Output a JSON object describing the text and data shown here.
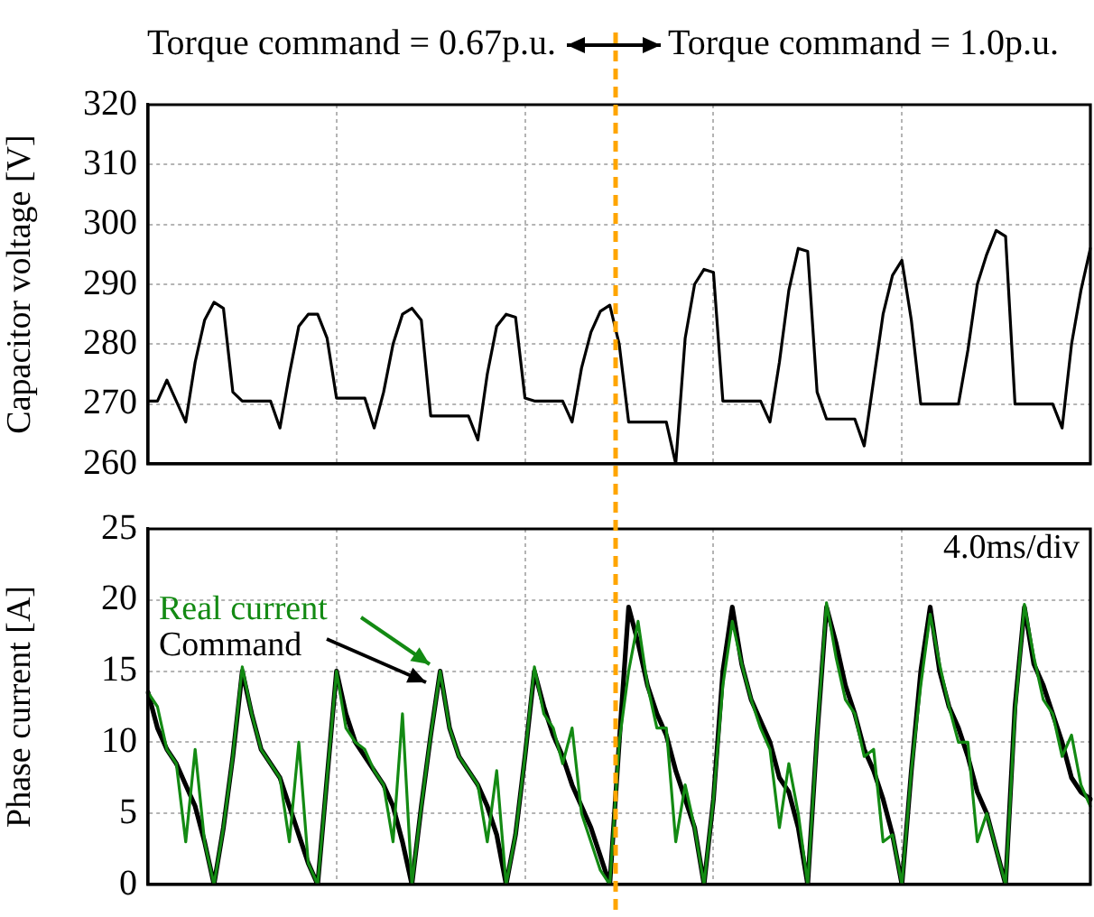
{
  "chart_data": [
    {
      "type": "line",
      "ylabel": "Capacitor voltage [V]",
      "annotations": [
        "Torque command = 0.67p.u.",
        "Torque command = 1.0p.u."
      ],
      "categories": [
        null,
        null,
        null,
        null,
        null,
        null,
        null,
        null,
        null,
        null,
        null,
        null,
        null,
        null,
        null,
        null,
        null,
        null,
        null,
        null,
        null,
        null,
        null,
        null,
        null,
        null,
        null,
        null,
        null,
        null,
        null,
        null,
        null,
        null,
        null,
        null,
        null,
        null,
        null,
        null,
        null,
        null,
        null,
        null,
        null,
        null,
        null,
        null,
        null,
        null,
        null,
        null,
        null,
        null,
        null,
        null,
        null,
        null,
        null,
        null,
        null,
        null,
        null,
        null,
        null,
        null,
        null,
        null,
        null,
        null,
        null,
        null,
        null,
        null,
        null,
        null,
        null,
        null,
        null,
        null,
        null,
        null,
        null,
        null,
        null,
        null,
        null,
        null,
        null,
        null,
        null,
        null,
        null,
        null,
        null,
        null,
        null,
        null,
        null,
        null,
        null
      ],
      "ylim": [
        260,
        320
      ],
      "yticks": [
        260,
        270,
        280,
        290,
        300,
        310,
        320
      ],
      "grid": true,
      "tick_labels": "y",
      "marker": "none",
      "line_style": "solid",
      "series": [
        {
          "color": "#000000",
          "values": [
            270.5,
            270.5,
            274,
            270.5,
            267,
            277,
            284,
            287,
            286,
            272,
            270.5,
            270.5,
            270.5,
            270.5,
            266,
            275,
            283,
            285,
            285,
            281,
            271,
            271,
            271,
            271,
            266,
            272,
            280,
            285,
            286,
            284,
            268,
            268,
            268,
            268,
            268,
            264,
            275,
            283,
            285,
            284.5,
            271,
            270.5,
            270.5,
            270.5,
            270.5,
            267,
            276,
            282,
            285.5,
            286.5,
            280,
            267,
            267,
            267,
            267,
            267,
            260,
            281,
            290,
            292.5,
            292,
            270.5,
            270.5,
            270.5,
            270.5,
            270.5,
            267,
            277,
            289,
            296,
            295.5,
            272,
            267.5,
            267.5,
            267.5,
            267.5,
            263,
            274,
            285,
            291.5,
            294,
            284,
            270,
            270,
            270,
            270,
            270,
            279,
            290,
            295,
            299,
            298,
            270,
            270,
            270,
            270,
            270,
            266,
            280,
            289,
            296
          ]
        }
      ]
    },
    {
      "type": "line",
      "ylabel": "Phase current [A]",
      "annotations": [
        "4.0ms/div"
      ],
      "categories": [
        null,
        null,
        null,
        null,
        null,
        null,
        null,
        null,
        null,
        null,
        null,
        null,
        null,
        null,
        null,
        null,
        null,
        null,
        null,
        null,
        null,
        null,
        null,
        null,
        null,
        null,
        null,
        null,
        null,
        null,
        null,
        null,
        null,
        null,
        null,
        null,
        null,
        null,
        null,
        null,
        null,
        null,
        null,
        null,
        null,
        null,
        null,
        null,
        null,
        null,
        null,
        null,
        null,
        null,
        null,
        null,
        null,
        null,
        null,
        null,
        null,
        null,
        null,
        null,
        null,
        null,
        null,
        null,
        null,
        null,
        null,
        null,
        null,
        null,
        null,
        null,
        null,
        null,
        null,
        null,
        null,
        null,
        null,
        null,
        null,
        null,
        null,
        null,
        null,
        null,
        null,
        null,
        null,
        null,
        null,
        null,
        null,
        null,
        null,
        null,
        null
      ],
      "ylim": [
        0,
        25
      ],
      "yticks": [
        0,
        5,
        10,
        15,
        20,
        25
      ],
      "grid": true,
      "tick_labels": "y",
      "marker": "none",
      "line_style": "solid",
      "series": [
        {
          "name": "Command",
          "color": "#000000",
          "values": [
            13.5,
            11,
            9.5,
            8.5,
            7,
            5.5,
            3,
            0,
            4,
            9,
            15,
            12,
            9.5,
            8.5,
            7.5,
            5.5,
            3.5,
            1.5,
            0,
            7.5,
            15,
            12,
            10,
            9,
            8,
            7,
            5.5,
            3,
            0,
            5.5,
            10.5,
            15,
            11,
            9,
            8,
            7,
            5.5,
            3.5,
            0,
            3.5,
            9,
            15,
            12.5,
            10.5,
            9,
            7,
            5.5,
            4,
            2,
            0,
            10,
            19.5,
            17,
            14,
            12,
            10.5,
            8,
            6,
            4,
            0,
            6,
            15,
            19.5,
            15.5,
            13,
            11.5,
            10,
            7.5,
            6.5,
            4,
            0,
            10.5,
            19.5,
            17,
            14,
            12,
            9.5,
            8,
            6,
            3.5,
            0,
            8,
            15,
            19.5,
            15,
            12.5,
            11,
            9,
            6.5,
            5,
            2.5,
            0,
            12.5,
            19.5,
            15.5,
            14,
            12,
            10,
            7.5,
            6.5,
            6
          ]
        },
        {
          "name": "Real current",
          "color": "#138a13",
          "values": [
            13.5,
            12.5,
            9.5,
            8.5,
            3,
            9.5,
            3,
            0,
            4,
            9,
            15.3,
            12,
            9.5,
            8.5,
            7.5,
            3,
            10,
            1.5,
            0,
            7.5,
            15,
            11,
            10,
            9.5,
            8,
            7,
            3,
            12,
            0,
            5.5,
            10.5,
            15,
            11,
            9,
            8,
            7,
            3,
            8,
            0,
            3.5,
            9,
            15.3,
            12,
            11,
            8.5,
            11,
            5,
            3,
            1,
            0,
            10,
            15,
            18.5,
            14,
            11,
            11,
            3,
            7,
            4,
            0,
            6,
            14,
            18.5,
            15.5,
            13,
            11,
            9.5,
            4,
            8.5,
            5,
            0,
            10.5,
            19.8,
            16,
            13,
            12,
            9,
            9.5,
            3,
            3.5,
            0,
            8,
            14,
            19,
            15.5,
            12.5,
            10,
            10,
            3,
            5,
            2.5,
            0,
            12,
            19.7,
            16,
            13,
            12,
            9,
            10.5,
            7,
            5.5
          ]
        }
      ]
    }
  ]
}
